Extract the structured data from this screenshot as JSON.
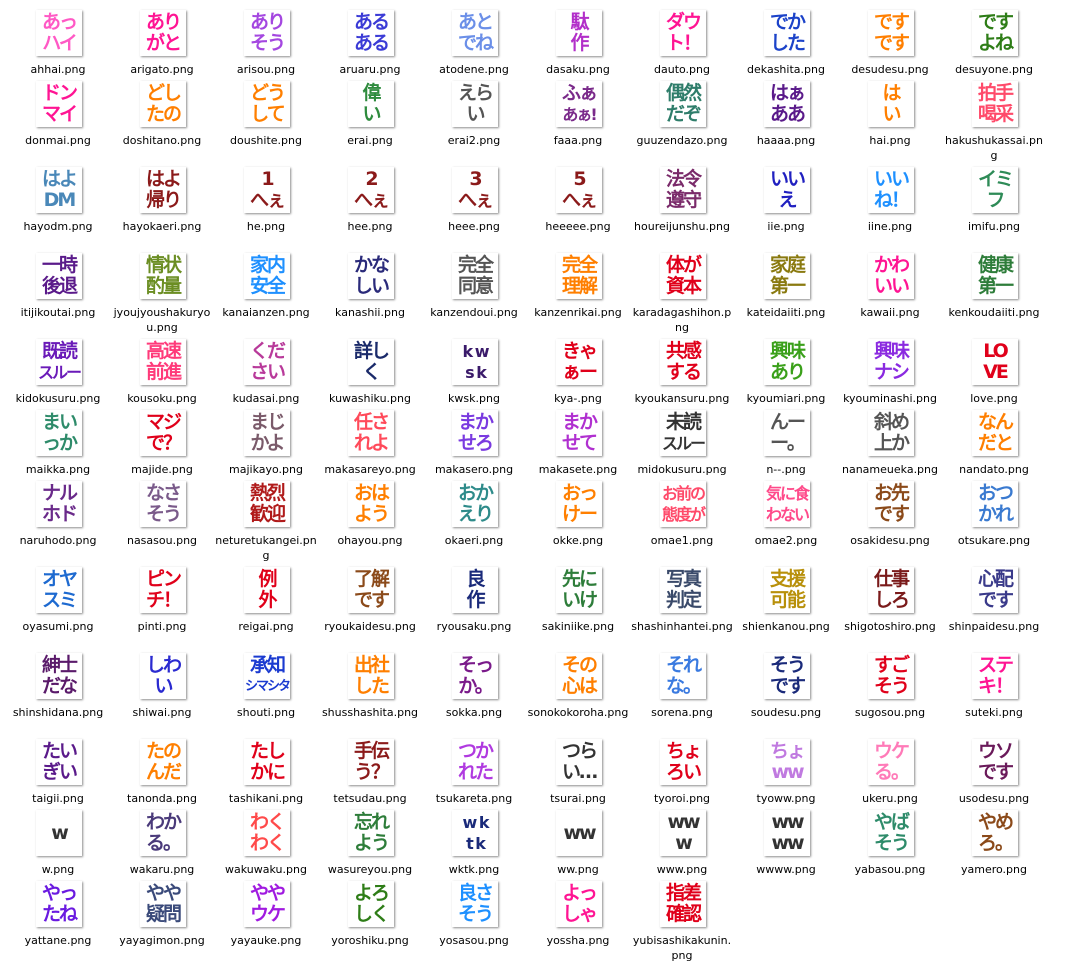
{
  "files": [
    {
      "name": "ahhai.png",
      "lines": [
        "あっ",
        "ハイ"
      ],
      "color": "#ff59c5"
    },
    {
      "name": "arigato.png",
      "lines": [
        "あり",
        "がと"
      ],
      "color": "#ff1493"
    },
    {
      "name": "arisou.png",
      "lines": [
        "あり",
        "そう"
      ],
      "color": "#a447e0"
    },
    {
      "name": "aruaru.png",
      "lines": [
        "ある",
        "ある"
      ],
      "color": "#3b3bd6"
    },
    {
      "name": "atodene.png",
      "lines": [
        "あと",
        "でね"
      ],
      "color": "#6b8fe8"
    },
    {
      "name": "dasaku.png",
      "lines": [
        "駄",
        "作"
      ],
      "color": "#b22fc9"
    },
    {
      "name": "dauto.png",
      "lines": [
        "ダウ",
        "ト！"
      ],
      "color": "#ff1493"
    },
    {
      "name": "dekashita.png",
      "lines": [
        "でか",
        "した"
      ],
      "color": "#1c43c9"
    },
    {
      "name": "desudesu.png",
      "lines": [
        "です",
        "です"
      ],
      "color": "#ff7f00"
    },
    {
      "name": "desuyone.png",
      "lines": [
        "です",
        "よね"
      ],
      "color": "#2e7d17"
    },
    {
      "name": "donmai.png",
      "lines": [
        "ドン",
        "マイ"
      ],
      "color": "#ff1493"
    },
    {
      "name": "doshitano.png",
      "lines": [
        "どし",
        "たの"
      ],
      "color": "#ff7f00"
    },
    {
      "name": "doushite.png",
      "lines": [
        "どう",
        "して"
      ],
      "color": "#ff7f00"
    },
    {
      "name": "erai.png",
      "lines": [
        "偉",
        "い"
      ],
      "color": "#2e8b3d"
    },
    {
      "name": "erai2.png",
      "lines": [
        "えら",
        "い"
      ],
      "color": "#555555"
    },
    {
      "name": "faaa.png",
      "lines": [
        "ふぁ",
        "あぁ!"
      ],
      "color": "#7a2a8a"
    },
    {
      "name": "guuzendazo.png",
      "lines": [
        "偶然",
        "だぞ"
      ],
      "color": "#2e7d6a"
    },
    {
      "name": "haaaa.png",
      "lines": [
        "はぁ",
        "ああ"
      ],
      "color": "#5a1a8a"
    },
    {
      "name": "hai.png",
      "lines": [
        "は",
        "い"
      ],
      "color": "#ff7f00"
    },
    {
      "name": "hakushukassai.png",
      "lines": [
        "拍手",
        "喝采"
      ],
      "color": "#ff4a6a"
    },
    {
      "name": "hayodm.png",
      "lines": [
        "はよ",
        "DM"
      ],
      "color": "#4a88b8"
    },
    {
      "name": "hayokaeri.png",
      "lines": [
        "はよ",
        "帰り"
      ],
      "color": "#8b1a1a"
    },
    {
      "name": "he.png",
      "lines": [
        "1",
        "へぇ"
      ],
      "color": "#8b1a1a"
    },
    {
      "name": "hee.png",
      "lines": [
        "2",
        "へぇ"
      ],
      "color": "#8b1a1a"
    },
    {
      "name": "heee.png",
      "lines": [
        "3",
        "へぇ"
      ],
      "color": "#8b1a1a"
    },
    {
      "name": "heeeee.png",
      "lines": [
        "5",
        "へぇ"
      ],
      "color": "#8b1a1a"
    },
    {
      "name": "houreijunshu.png",
      "lines": [
        "法令",
        "遵守"
      ],
      "color": "#7a2a6a"
    },
    {
      "name": "iie.png",
      "lines": [
        "いい",
        "え"
      ],
      "color": "#2020c0"
    },
    {
      "name": "iine.png",
      "lines": [
        "いい",
        "ね！"
      ],
      "color": "#1e90ff"
    },
    {
      "name": "imifu.png",
      "lines": [
        "イミ",
        "フ"
      ],
      "color": "#2e8b57"
    },
    {
      "name": "itijikoutai.png",
      "lines": [
        "一時",
        "後退"
      ],
      "color": "#5a1a8a"
    },
    {
      "name": "jyoujyoushakuryou.png",
      "lines": [
        "情状",
        "酌量"
      ],
      "color": "#6b8e23"
    },
    {
      "name": "kanaianzen.png",
      "lines": [
        "家内",
        "安全"
      ],
      "color": "#1e90ff"
    },
    {
      "name": "kanashii.png",
      "lines": [
        "かな",
        "しい"
      ],
      "color": "#2a2a7a"
    },
    {
      "name": "kanzendoui.png",
      "lines": [
        "完全",
        "同意"
      ],
      "color": "#555555"
    },
    {
      "name": "kanzenrikai.png",
      "lines": [
        "完全",
        "理解"
      ],
      "color": "#ff7f00"
    },
    {
      "name": "karadagashihon.png",
      "lines": [
        "体が",
        "資本"
      ],
      "color": "#e0001a"
    },
    {
      "name": "kateidaiiti.png",
      "lines": [
        "家庭",
        "第一"
      ],
      "color": "#8a7a10"
    },
    {
      "name": "kawaii.png",
      "lines": [
        "かわ",
        "いい"
      ],
      "color": "#ff1493"
    },
    {
      "name": "kenkoudaiiti.png",
      "lines": [
        "健康",
        "第一"
      ],
      "color": "#2e7d3a"
    },
    {
      "name": "kidokusuru.png",
      "lines": [
        "既読",
        "スルー"
      ],
      "color": "#6a1ab8"
    },
    {
      "name": "kousoku.png",
      "lines": [
        "高速",
        "前進"
      ],
      "color": "#ff3a7a"
    },
    {
      "name": "kudasai.png",
      "lines": [
        "くだ",
        "さい"
      ],
      "color": "#b83a9a"
    },
    {
      "name": "kuwashiku.png",
      "lines": [
        "詳し",
        "く"
      ],
      "color": "#1a2a6a"
    },
    {
      "name": "kwsk.png",
      "lines": [
        "k w",
        "s k"
      ],
      "color": "#3a1a6a"
    },
    {
      "name": "kya-.png",
      "lines": [
        "きゃ",
        "ぁー"
      ],
      "color": "#e0001a"
    },
    {
      "name": "kyoukansuru.png",
      "lines": [
        "共感",
        "する"
      ],
      "color": "#e0001a"
    },
    {
      "name": "kyoumiari.png",
      "lines": [
        "興味",
        "あり"
      ],
      "color": "#3aa01a"
    },
    {
      "name": "kyouminashi.png",
      "lines": [
        "興味",
        "ナシ"
      ],
      "color": "#8a2ae0"
    },
    {
      "name": "love.png",
      "lines": [
        "LO",
        "VE"
      ],
      "color": "#e0001a"
    },
    {
      "name": "maikka.png",
      "lines": [
        "まい",
        "っか"
      ],
      "color": "#2e8b6a"
    },
    {
      "name": "majide.png",
      "lines": [
        "マジ",
        "で？"
      ],
      "color": "#e0001a"
    },
    {
      "name": "majikayo.png",
      "lines": [
        "まじ",
        "かよ"
      ],
      "color": "#7a5a6a"
    },
    {
      "name": "makasareyo.png",
      "lines": [
        "任さ",
        "れよ"
      ],
      "color": "#ff4a5a"
    },
    {
      "name": "makasero.png",
      "lines": [
        "まか",
        "せろ"
      ],
      "color": "#7a3ae0"
    },
    {
      "name": "makasete.png",
      "lines": [
        "まか",
        "せて"
      ],
      "color": "#b030d0"
    },
    {
      "name": "midokusuru.png",
      "lines": [
        "未読",
        "スルー"
      ],
      "color": "#333333"
    },
    {
      "name": "n--.png",
      "lines": [
        "んー",
        "ー。"
      ],
      "color": "#555555"
    },
    {
      "name": "nanameueka.png",
      "lines": [
        "斜め",
        "上か"
      ],
      "color": "#555555"
    },
    {
      "name": "nandato.png",
      "lines": [
        "なん",
        "だと"
      ],
      "color": "#ff7f00"
    },
    {
      "name": "naruhodo.png",
      "lines": [
        "ナル",
        "ホド"
      ],
      "color": "#6a2a8a"
    },
    {
      "name": "nasasou.png",
      "lines": [
        "なさ",
        "そう"
      ],
      "color": "#7a5a8a"
    },
    {
      "name": "neturetukangei.png",
      "lines": [
        "熱烈",
        "歓迎"
      ],
      "color": "#b01a1a"
    },
    {
      "name": "ohayou.png",
      "lines": [
        "おは",
        "よう"
      ],
      "color": "#ff7f00"
    },
    {
      "name": "okaeri.png",
      "lines": [
        "おか",
        "えり"
      ],
      "color": "#2e8b8a"
    },
    {
      "name": "okke.png",
      "lines": [
        "おっ",
        "けー"
      ],
      "color": "#ff7f00"
    },
    {
      "name": "omae1.png",
      "lines": [
        "お前の",
        "態度が"
      ],
      "color": "#ff4a6a"
    },
    {
      "name": "omae2.png",
      "lines": [
        "気に食",
        "わない"
      ],
      "color": "#ff4a8a"
    },
    {
      "name": "osakidesu.png",
      "lines": [
        "お先",
        "です"
      ],
      "color": "#8b4a1a"
    },
    {
      "name": "otsukare.png",
      "lines": [
        "おつ",
        "かれ"
      ],
      "color": "#3a7ad0"
    },
    {
      "name": "oyasumi.png",
      "lines": [
        "オヤ",
        "スミ"
      ],
      "color": "#1e6ad0"
    },
    {
      "name": "pinti.png",
      "lines": [
        "ピン",
        "チ！"
      ],
      "color": "#e0001a"
    },
    {
      "name": "reigai.png",
      "lines": [
        "例",
        "外"
      ],
      "color": "#e0001a"
    },
    {
      "name": "ryoukaidesu.png",
      "lines": [
        "了解",
        "です"
      ],
      "color": "#8b4a1a"
    },
    {
      "name": "ryousaku.png",
      "lines": [
        "良",
        "作"
      ],
      "color": "#1a2a7a"
    },
    {
      "name": "sakiniike.png",
      "lines": [
        "先に",
        "いけ"
      ],
      "color": "#2e7d3a"
    },
    {
      "name": "shashinhantei.png",
      "lines": [
        "写真",
        "判定"
      ],
      "color": "#3a4a6a"
    },
    {
      "name": "shienkanou.png",
      "lines": [
        "支援",
        "可能"
      ],
      "color": "#b8900a"
    },
    {
      "name": "shigotoshiro.png",
      "lines": [
        "仕事",
        "しろ"
      ],
      "color": "#7a1a1a"
    },
    {
      "name": "shinpaidesu.png",
      "lines": [
        "心配",
        "です"
      ],
      "color": "#3a3a8a"
    },
    {
      "name": "shinshidana.png",
      "lines": [
        "紳士",
        "だな"
      ],
      "color": "#5a1a6a"
    },
    {
      "name": "shiwai.png",
      "lines": [
        "しわ",
        "い"
      ],
      "color": "#2a2ad0"
    },
    {
      "name": "shouti.png",
      "lines": [
        "承知",
        "シマシタ"
      ],
      "color": "#1a3ad0"
    },
    {
      "name": "shusshashita.png",
      "lines": [
        "出社",
        "した"
      ],
      "color": "#ff7f00"
    },
    {
      "name": "sokka.png",
      "lines": [
        "そっ",
        "か。"
      ],
      "color": "#7a1a8a"
    },
    {
      "name": "sonokokoroha.png",
      "lines": [
        "その",
        "心は"
      ],
      "color": "#ff7f00"
    },
    {
      "name": "sorena.png",
      "lines": [
        "それ",
        "な。"
      ],
      "color": "#3a7ae0"
    },
    {
      "name": "soudesu.png",
      "lines": [
        "そう",
        "です"
      ],
      "color": "#1a2a7a"
    },
    {
      "name": "sugosou.png",
      "lines": [
        "すご",
        "そう"
      ],
      "color": "#e0001a"
    },
    {
      "name": "suteki.png",
      "lines": [
        "ステ",
        "キ！"
      ],
      "color": "#ff1493"
    },
    {
      "name": "taigii.png",
      "lines": [
        "たい",
        "ぎい"
      ],
      "color": "#5a1a8a"
    },
    {
      "name": "tanonda.png",
      "lines": [
        "たの",
        "んだ"
      ],
      "color": "#ff7f00"
    },
    {
      "name": "tashikani.png",
      "lines": [
        "たし",
        "かに"
      ],
      "color": "#e0001a"
    },
    {
      "name": "tetsudau.png",
      "lines": [
        "手伝",
        "う？"
      ],
      "color": "#8b1a1a"
    },
    {
      "name": "tsukareta.png",
      "lines": [
        "つか",
        "れた"
      ],
      "color": "#b03ae0"
    },
    {
      "name": "tsurai.png",
      "lines": [
        "つら",
        "い…"
      ],
      "color": "#333333"
    },
    {
      "name": "tyoroi.png",
      "lines": [
        "ちょ",
        "ろい"
      ],
      "color": "#e0001a"
    },
    {
      "name": "tyoww.png",
      "lines": [
        "ちょ",
        "ww"
      ],
      "color": "#c07ae0"
    },
    {
      "name": "ukeru.png",
      "lines": [
        "ウケ",
        "る。"
      ],
      "color": "#ff7ab8"
    },
    {
      "name": "usodesu.png",
      "lines": [
        "ウソ",
        "です"
      ],
      "color": "#6a1a5a"
    },
    {
      "name": "w.png",
      "lines": [
        "w"
      ],
      "color": "#333333"
    },
    {
      "name": "wakaru.png",
      "lines": [
        "わか",
        "る。"
      ],
      "color": "#4a3a7a"
    },
    {
      "name": "wakuwaku.png",
      "lines": [
        "わく",
        "わく"
      ],
      "color": "#ff4a4a"
    },
    {
      "name": "wasureyou.png",
      "lines": [
        "忘れ",
        "よう"
      ],
      "color": "#2e7d3a"
    },
    {
      "name": "wktk.png",
      "lines": [
        "w k",
        "t k"
      ],
      "color": "#1a2a7a"
    },
    {
      "name": "ww.png",
      "lines": [
        "ww"
      ],
      "color": "#333333"
    },
    {
      "name": "www.png",
      "lines": [
        "ww",
        "w"
      ],
      "color": "#333333"
    },
    {
      "name": "wwww.png",
      "lines": [
        "ww",
        "ww"
      ],
      "color": "#333333"
    },
    {
      "name": "yabasou.png",
      "lines": [
        "やば",
        "そう"
      ],
      "color": "#2e8b6a"
    },
    {
      "name": "yamero.png",
      "lines": [
        "やめ",
        "ろ。"
      ],
      "color": "#8b4a1a"
    },
    {
      "name": "yattane.png",
      "lines": [
        "やっ",
        "たね"
      ],
      "color": "#6a1ae0"
    },
    {
      "name": "yayagimon.png",
      "lines": [
        "やや",
        "疑問"
      ],
      "color": "#3a4a7a"
    },
    {
      "name": "yayauke.png",
      "lines": [
        "やや",
        "ウケ"
      ],
      "color": "#a01ae0"
    },
    {
      "name": "yoroshiku.png",
      "lines": [
        "よろ",
        "しく"
      ],
      "color": "#2e7d17"
    },
    {
      "name": "yosasou.png",
      "lines": [
        "良さ",
        "そう"
      ],
      "color": "#1e90ff"
    },
    {
      "name": "yossha.png",
      "lines": [
        "よっ",
        "しゃ"
      ],
      "color": "#ff1493"
    },
    {
      "name": "yubisashikakunin.png",
      "lines": [
        "指差",
        "確認"
      ],
      "color": "#e0001a"
    }
  ]
}
